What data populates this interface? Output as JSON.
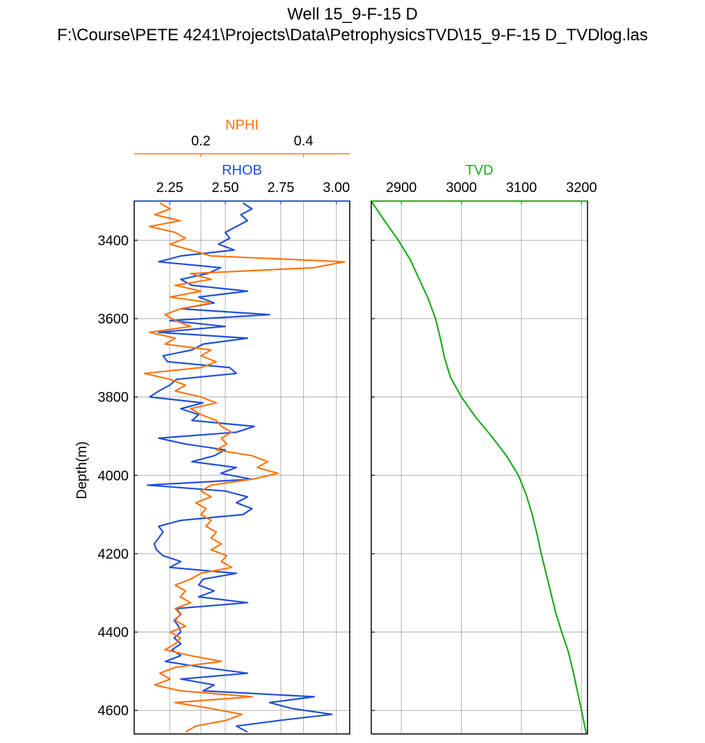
{
  "title": "Well 15_9-F-15 D",
  "subtitle": "F:\\Course\\PETE 4241\\Projects\\Data\\PetrophysicsTVD\\15_9-F-15 D_TVDlog.las",
  "colors": {
    "rhob": "#1f4fd6",
    "nphi": "#ff7410",
    "tvd": "#1cab1c",
    "grid": "#b0b0b0"
  },
  "chart_data": [
    {
      "type": "line",
      "panel": "left",
      "ylabel": "Depth(m)",
      "ylim": [
        4660,
        3300
      ],
      "yticks": [
        3400,
        3600,
        3800,
        4000,
        4200,
        4400,
        4600
      ],
      "grid": true,
      "series": [
        {
          "name": "RHOB",
          "xlim": [
            2.09,
            3.06
          ],
          "xticks": [
            2.25,
            2.5,
            2.75,
            3.0
          ],
          "xticklabels": [
            "2.25",
            "2.50",
            "2.75",
            "3.00"
          ],
          "depth": [
            3305,
            3320,
            3335,
            3350,
            3365,
            3380,
            3395,
            3410,
            3425,
            3440,
            3455,
            3470,
            3485,
            3500,
            3515,
            3530,
            3545,
            3560,
            3575,
            3590,
            3605,
            3620,
            3635,
            3650,
            3665,
            3680,
            3695,
            3710,
            3725,
            3740,
            3755,
            3770,
            3785,
            3800,
            3815,
            3830,
            3845,
            3860,
            3875,
            3890,
            3905,
            3920,
            3935,
            3950,
            3965,
            3980,
            3995,
            4010,
            4025,
            4040,
            4055,
            4070,
            4085,
            4100,
            4115,
            4130,
            4145,
            4160,
            4175,
            4190,
            4205,
            4220,
            4235,
            4250,
            4265,
            4280,
            4295,
            4310,
            4325,
            4340,
            4355,
            4370,
            4385,
            4400,
            4415,
            4430,
            4445,
            4460,
            4475,
            4490,
            4505,
            4520,
            4535,
            4550,
            4565,
            4580,
            4595,
            4610,
            4625,
            4640,
            4655
          ],
          "x": [
            2.58,
            2.62,
            2.57,
            2.6,
            2.55,
            2.5,
            2.52,
            2.47,
            2.54,
            2.3,
            2.2,
            2.48,
            2.42,
            2.3,
            2.35,
            2.6,
            2.38,
            2.45,
            2.3,
            2.7,
            2.25,
            2.5,
            2.2,
            2.6,
            2.4,
            2.35,
            2.22,
            2.24,
            2.52,
            2.55,
            2.28,
            2.25,
            2.2,
            2.16,
            2.4,
            2.3,
            2.38,
            2.35,
            2.63,
            2.55,
            2.2,
            2.32,
            2.5,
            2.45,
            2.35,
            2.55,
            2.48,
            2.62,
            2.15,
            2.5,
            2.6,
            2.55,
            2.62,
            2.58,
            2.3,
            2.2,
            2.22,
            2.2,
            2.18,
            2.19,
            2.22,
            2.3,
            2.25,
            2.55,
            2.4,
            2.38,
            2.45,
            2.38,
            2.6,
            2.28,
            2.3,
            2.27,
            2.29,
            2.3,
            2.27,
            2.3,
            2.26,
            2.3,
            2.23,
            2.4,
            2.6,
            2.3,
            2.45,
            2.4,
            2.9,
            2.7,
            2.8,
            2.98,
            2.75,
            2.55,
            2.6
          ]
        },
        {
          "name": "NPHI",
          "xlim": [
            0.07,
            0.49
          ],
          "xticks": [
            0.2,
            0.4
          ],
          "xticklabels": [
            "0.2",
            "0.4"
          ],
          "depth": [
            3305,
            3320,
            3335,
            3350,
            3365,
            3380,
            3395,
            3410,
            3425,
            3440,
            3455,
            3470,
            3485,
            3500,
            3515,
            3530,
            3545,
            3560,
            3575,
            3590,
            3605,
            3620,
            3635,
            3650,
            3665,
            3680,
            3695,
            3710,
            3725,
            3740,
            3755,
            3770,
            3785,
            3800,
            3815,
            3830,
            3845,
            3860,
            3875,
            3890,
            3905,
            3920,
            3935,
            3950,
            3965,
            3980,
            3995,
            4010,
            4025,
            4040,
            4055,
            4070,
            4085,
            4100,
            4115,
            4130,
            4145,
            4160,
            4175,
            4190,
            4205,
            4220,
            4235,
            4250,
            4265,
            4280,
            4295,
            4310,
            4325,
            4340,
            4355,
            4370,
            4385,
            4400,
            4415,
            4430,
            4445,
            4460,
            4475,
            4490,
            4505,
            4520,
            4535,
            4550,
            4565,
            4580,
            4595,
            4610,
            4625,
            4640,
            4655
          ],
          "x": [
            0.12,
            0.14,
            0.11,
            0.16,
            0.1,
            0.15,
            0.17,
            0.14,
            0.18,
            0.22,
            0.48,
            0.42,
            0.18,
            0.22,
            0.15,
            0.2,
            0.14,
            0.22,
            0.16,
            0.13,
            0.15,
            0.18,
            0.1,
            0.15,
            0.13,
            0.22,
            0.2,
            0.23,
            0.2,
            0.09,
            0.14,
            0.17,
            0.15,
            0.2,
            0.23,
            0.18,
            0.2,
            0.23,
            0.24,
            0.26,
            0.24,
            0.25,
            0.23,
            0.3,
            0.33,
            0.31,
            0.35,
            0.3,
            0.22,
            0.2,
            0.22,
            0.19,
            0.21,
            0.2,
            0.22,
            0.21,
            0.23,
            0.22,
            0.24,
            0.22,
            0.25,
            0.24,
            0.26,
            0.2,
            0.18,
            0.15,
            0.17,
            0.16,
            0.18,
            0.15,
            0.16,
            0.15,
            0.17,
            0.14,
            0.16,
            0.15,
            0.13,
            0.18,
            0.24,
            0.15,
            0.12,
            0.14,
            0.11,
            0.16,
            0.3,
            0.15,
            0.22,
            0.28,
            0.25,
            0.19,
            0.17
          ]
        }
      ]
    },
    {
      "type": "line",
      "panel": "right",
      "ylim": [
        4660,
        3300
      ],
      "yticks": [
        3400,
        3600,
        3800,
        4000,
        4200,
        4400,
        4600
      ],
      "grid": true,
      "series": [
        {
          "name": "TVD",
          "xlim": [
            2850,
            3210
          ],
          "xticks": [
            2900,
            3000,
            3100,
            3200
          ],
          "xticklabels": [
            "2900",
            "3000",
            "3100",
            "3200"
          ],
          "depth": [
            3300,
            3350,
            3400,
            3450,
            3500,
            3550,
            3600,
            3650,
            3700,
            3750,
            3800,
            3850,
            3900,
            3950,
            4000,
            4050,
            4100,
            4150,
            4200,
            4250,
            4300,
            4350,
            4400,
            4450,
            4500,
            4550,
            4600,
            4660
          ],
          "x": [
            2850,
            2872,
            2895,
            2915,
            2930,
            2945,
            2957,
            2965,
            2972,
            2982,
            3000,
            3023,
            3050,
            3075,
            3095,
            3108,
            3118,
            3126,
            3133,
            3141,
            3149,
            3157,
            3167,
            3178,
            3186,
            3193,
            3200,
            3208
          ]
        }
      ]
    }
  ]
}
